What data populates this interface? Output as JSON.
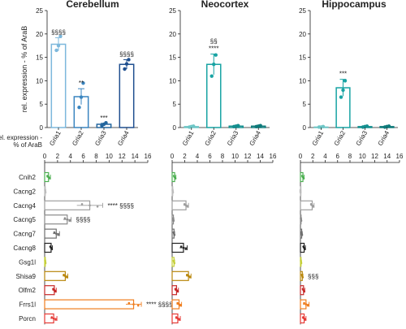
{
  "chart_data": [
    {
      "type": "bar",
      "title": "Cerebellum",
      "ylabel": "rel. expression - % of AraB",
      "categories": [
        "Gria1",
        "Gria2",
        "Gria3",
        "Gria4"
      ],
      "values": [
        17.8,
        6.6,
        0.7,
        13.5
      ],
      "errors": [
        1.4,
        1.7,
        0.2,
        1.0
      ],
      "points": [
        [
          16.5,
          17.5,
          19.5
        ],
        [
          4.3,
          6.5,
          9.5
        ],
        [
          0.4,
          0.7,
          1.0
        ],
        [
          12.5,
          13.6,
          14.5
        ]
      ],
      "annotations": [
        "§§§§",
        "**",
        "***",
        "§§§§"
      ],
      "ylim": [
        0,
        25
      ],
      "yticks": [
        "0",
        "5",
        "10",
        "15",
        "20",
        "25"
      ],
      "colors": [
        "#7db8dc",
        "#3a85c0",
        "#23669e",
        "#1f4f8f"
      ]
    },
    {
      "type": "bar",
      "title": "Neocortex",
      "categories": [
        "Gria1",
        "Gria2",
        "Gria3",
        "Gria4"
      ],
      "values": [
        0.2,
        13.5,
        0.3,
        0.3
      ],
      "errors": [
        0.05,
        2.2,
        0.1,
        0.1
      ],
      "points": [
        [
          0.1,
          0.2,
          0.3
        ],
        [
          11.0,
          13.5,
          15.5
        ],
        [
          0.2,
          0.3,
          0.4
        ],
        [
          0.2,
          0.3,
          0.4
        ]
      ],
      "annotations": [
        "",
        "§§\n****",
        "",
        ""
      ],
      "ylim": [
        0,
        25
      ],
      "yticks": [
        "0",
        "5",
        "10",
        "15",
        "20",
        "25"
      ],
      "colors": [
        "#6ec6c6",
        "#17a3a3",
        "#138f8f",
        "#0e7a7a"
      ]
    },
    {
      "type": "bar",
      "title": "Hippocampus",
      "categories": [
        "Gria1",
        "Gria2",
        "Gria3",
        "Gria4"
      ],
      "values": [
        0.1,
        8.5,
        0.2,
        0.2
      ],
      "errors": [
        0.05,
        1.8,
        0.1,
        0.1
      ],
      "points": [
        [
          0.1,
          0.1,
          0.2
        ],
        [
          6.5,
          8.0,
          10.0
        ],
        [
          0.1,
          0.2,
          0.3
        ],
        [
          0.1,
          0.2,
          0.3
        ]
      ],
      "annotations": [
        "",
        "***",
        "",
        ""
      ],
      "ylim": [
        0,
        25
      ],
      "yticks": [
        "0",
        "5",
        "10",
        "15",
        "20",
        "25"
      ],
      "colors": [
        "#6ec6c6",
        "#17a3a3",
        "#138f8f",
        "#0e7a7a"
      ]
    },
    {
      "type": "bar",
      "orientation": "horizontal",
      "xlabel": "rel. expression -\n% of AraB",
      "categories": [
        "Cnih2",
        "Cacng2",
        "Cacng4",
        "Cacng5",
        "Cacng7",
        "Cacng8",
        "Gsg1l",
        "Shisa9",
        "Olfm2",
        "Frrs1l",
        "Porcn"
      ],
      "xticks": [
        "0",
        "2",
        "4",
        "6",
        "8",
        "10",
        "12",
        "14",
        "16"
      ],
      "xlim": [
        0,
        16
      ],
      "colors": [
        "#4caf50",
        "#bdbdbd",
        "#9e9e9e",
        "#8a8a8a",
        "#6e6e6e",
        "#222222",
        "#c5cf3a",
        "#b8860b",
        "#c62828",
        "#ef7d1e",
        "#e53935"
      ],
      "panels": [
        {
          "region": "Cerebellum",
          "values": [
            0.6,
            0.1,
            7.0,
            3.5,
            1.8,
            1.0,
            0.1,
            3.2,
            1.5,
            13.8,
            1.4
          ],
          "errors": [
            0.3,
            0.05,
            2.0,
            0.6,
            0.5,
            0.2,
            0.05,
            0.4,
            0.3,
            1.2,
            0.5
          ],
          "annotations": [
            "",
            "",
            "**** §§§§",
            "§§§§",
            "",
            "",
            "",
            "",
            "",
            "**** §§§§",
            ""
          ]
        },
        {
          "region": "Neocortex",
          "values": [
            0.4,
            0.1,
            2.2,
            0.2,
            0.3,
            1.8,
            0.3,
            2.6,
            0.7,
            1.1,
            0.9
          ],
          "errors": [
            0.2,
            0.05,
            0.4,
            0.05,
            0.1,
            0.6,
            0.1,
            0.4,
            0.3,
            0.4,
            0.4
          ],
          "annotations": [
            "",
            "",
            "",
            "",
            "",
            "",
            "",
            "",
            "",
            "",
            ""
          ]
        },
        {
          "region": "Hippocampus",
          "values": [
            0.4,
            0.0,
            1.9,
            0.1,
            0.2,
            0.6,
            0.1,
            0.3,
            0.5,
            0.9,
            0.6
          ],
          "errors": [
            0.2,
            0.02,
            0.3,
            0.05,
            0.1,
            0.2,
            0.05,
            0.1,
            0.2,
            0.5,
            0.3
          ],
          "annotations": [
            "",
            "",
            "",
            "",
            "",
            "",
            "",
            "§§§",
            "",
            "",
            ""
          ]
        }
      ]
    }
  ]
}
